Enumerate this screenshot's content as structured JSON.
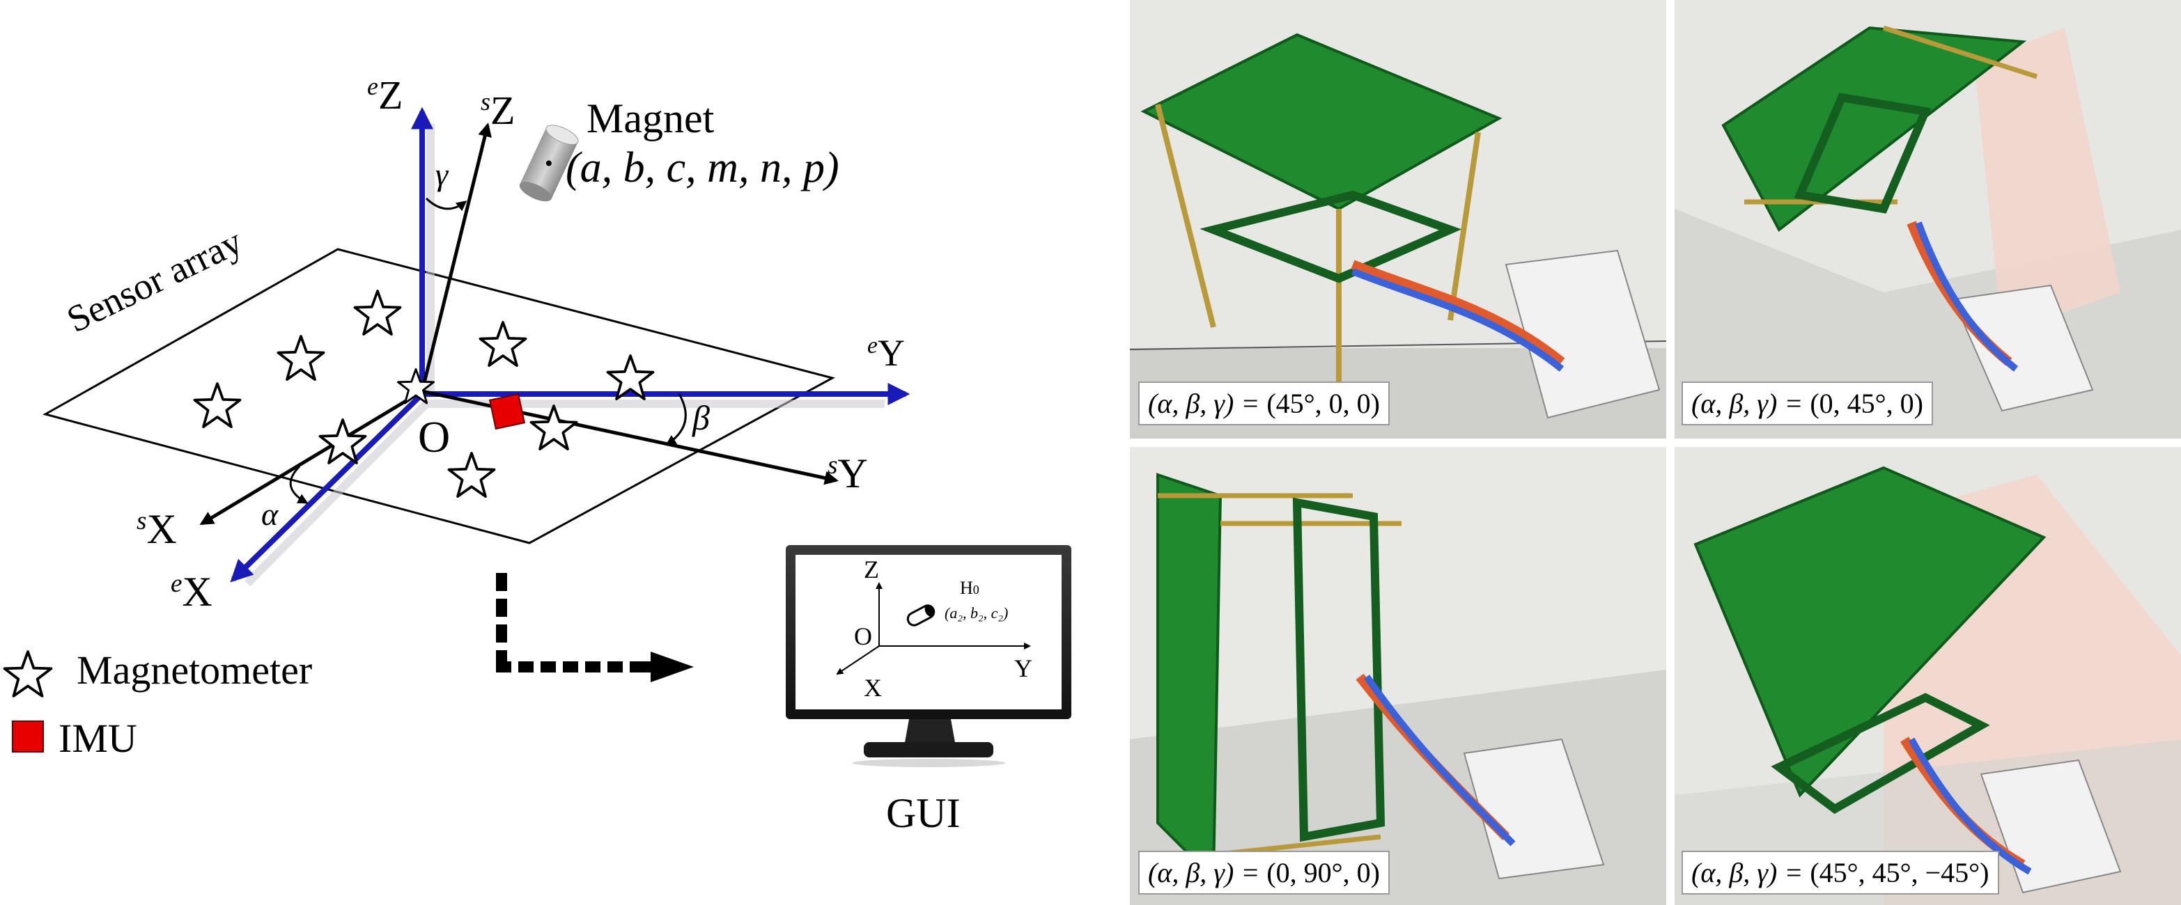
{
  "diagram": {
    "axes": {
      "eZ": {
        "sup": "e",
        "name": "Z"
      },
      "sZ": {
        "sup": "s",
        "name": "Z"
      },
      "eY": {
        "sup": "e",
        "name": "Y"
      },
      "sY": {
        "sup": "s",
        "name": "Y"
      },
      "sX": {
        "sup": "s",
        "name": "X"
      },
      "eX": {
        "sup": "e",
        "name": "X"
      }
    },
    "origin": "O",
    "angles": {
      "alpha": "α",
      "beta": "β",
      "gamma": "γ"
    },
    "sensor_array_label": "Sensor array",
    "magnet": {
      "title": "Magnet",
      "params": "(a, b, c, m, n, p)"
    },
    "legend": {
      "magnetometer": "Magnetometer",
      "imu": "IMU"
    },
    "gui": {
      "label": "GUI",
      "z": "Z",
      "o": "O",
      "x": "X",
      "y": "Y",
      "h0": "H",
      "h0_sub": "0",
      "coords": "(a₂, b₂, c₂)"
    },
    "colors": {
      "earth_axes": "#1a1ab8",
      "sensor_axes": "#000000",
      "imu": "#e60000",
      "board": "#1f8a2e"
    }
  },
  "photos": [
    {
      "caption_prefix": "(α, β, γ) = ",
      "caption_value": "(45°, 0, 0)"
    },
    {
      "caption_prefix": "(α, β, γ) = ",
      "caption_value": "(0, 45°, 0)"
    },
    {
      "caption_prefix": "(α, β, γ) = ",
      "caption_value": "(0, 90°, 0)"
    },
    {
      "caption_prefix": "(α, β, γ) = ",
      "caption_value": "(45°, 45°, −45°)"
    }
  ]
}
